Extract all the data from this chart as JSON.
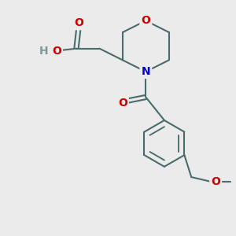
{
  "background_color": "#ebebeb",
  "bond_color": "#4a6b6b",
  "bond_width": 1.5,
  "atom_colors": {
    "O": "#cc0000",
    "N": "#0000cc",
    "H": "#7a9a9a"
  },
  "font_size_atom": 10,
  "figsize": [
    3.0,
    3.0
  ],
  "dpi": 100
}
